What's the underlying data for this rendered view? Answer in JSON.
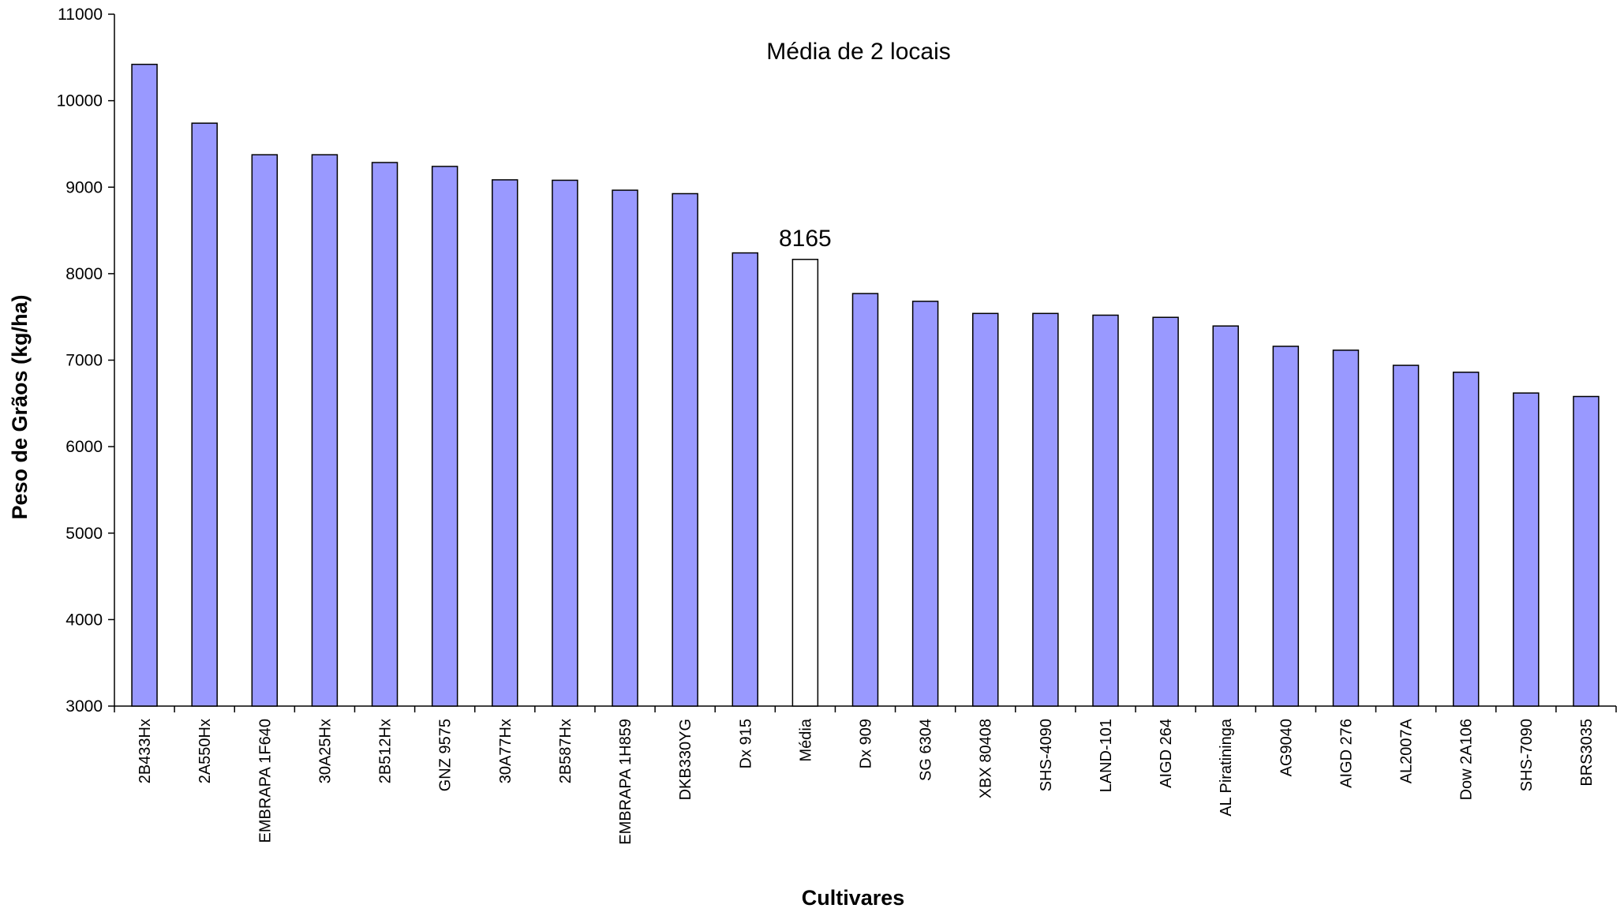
{
  "chart_data": {
    "type": "bar",
    "title": "Média de 2 locais",
    "xlabel": "Cultivares",
    "ylabel": "Peso de Grãos (kg/ha)",
    "ylim": [
      3000,
      11000
    ],
    "yticks": [
      3000,
      4000,
      5000,
      6000,
      7000,
      8000,
      9000,
      10000,
      11000
    ],
    "grid": false,
    "legend": "none",
    "categories": [
      "2B433Hx",
      "2A550Hx",
      "EMBRAPA 1F640",
      "30A25Hx",
      "2B512Hx",
      "GNZ 9575",
      "30A77Hx",
      "2B587Hx",
      "EMBRAPA 1H859",
      "DKB330YG",
      "Dx 915",
      "Média",
      "Dx 909",
      "SG 6304",
      "XBX 80408",
      "SHS-4090",
      "LAND-101",
      "AIGD 264",
      "AL Piratininga",
      "AG9040",
      "AIGD 276",
      "AL2007A",
      "Dow 2A106",
      "SHS-7090",
      "BRS3035"
    ],
    "values": [
      10420,
      9740,
      9375,
      9375,
      9285,
      9240,
      9085,
      9080,
      8965,
      8925,
      8240,
      8165,
      7770,
      7680,
      7540,
      7540,
      7520,
      7495,
      7395,
      7160,
      7115,
      6940,
      6860,
      6620,
      6580
    ],
    "highlight_category": "Média",
    "data_labels": [
      {
        "category": "Média",
        "text": "8165"
      }
    ],
    "colors": {
      "bar": "#9999ff",
      "highlight_bar": "#ffffff",
      "outline": "#000000"
    }
  }
}
